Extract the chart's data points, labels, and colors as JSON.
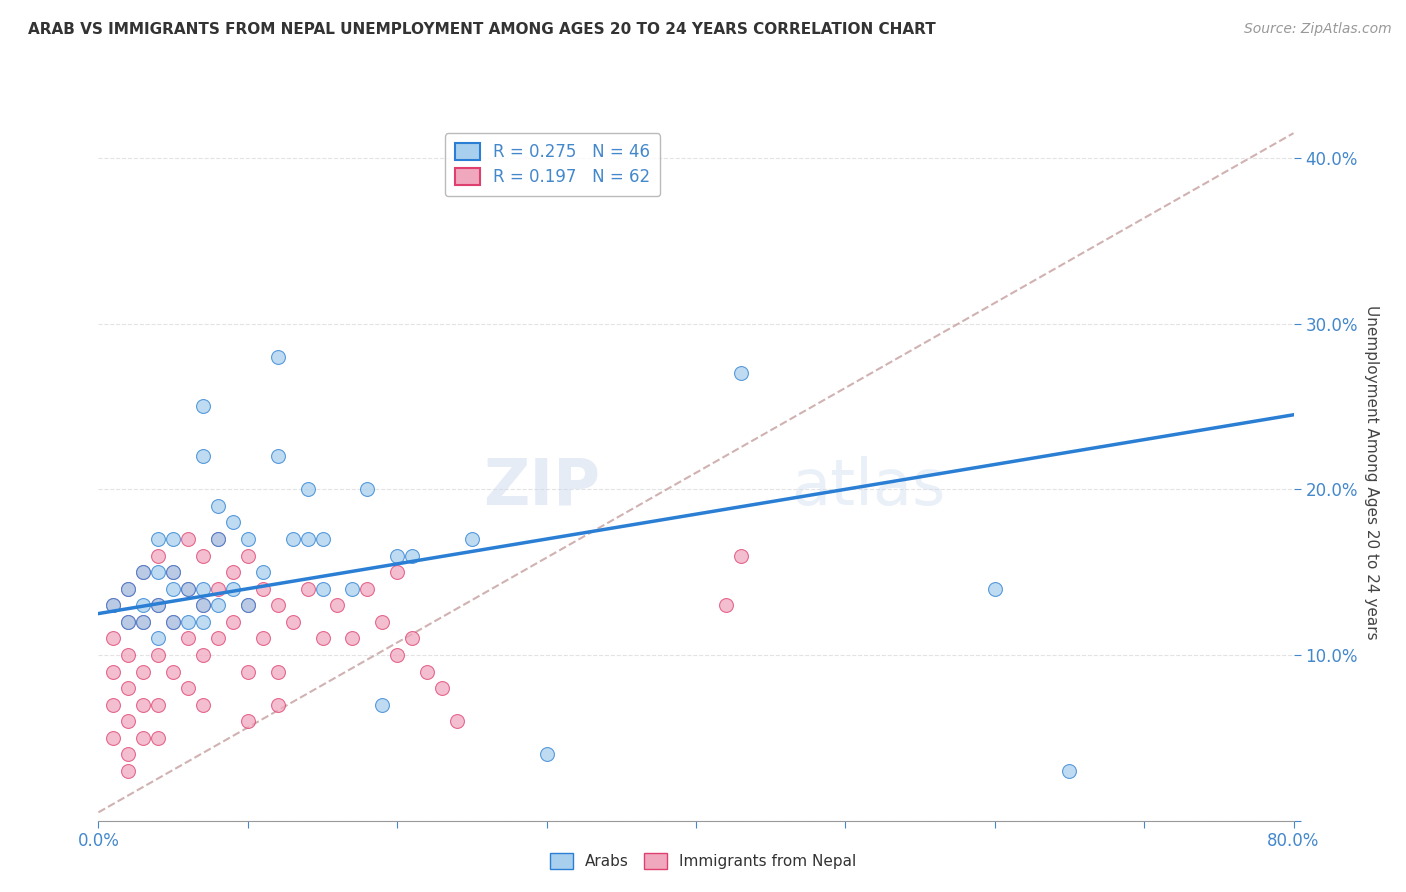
{
  "title": "ARAB VS IMMIGRANTS FROM NEPAL UNEMPLOYMENT AMONG AGES 20 TO 24 YEARS CORRELATION CHART",
  "source": "Source: ZipAtlas.com",
  "ylabel": "Unemployment Among Ages 20 to 24 years",
  "xlim": [
    0.0,
    0.8
  ],
  "ylim": [
    0.0,
    0.42
  ],
  "xticks": [
    0.0,
    0.1,
    0.2,
    0.3,
    0.4,
    0.5,
    0.6,
    0.7,
    0.8
  ],
  "yticks": [
    0.0,
    0.1,
    0.2,
    0.3,
    0.4
  ],
  "legend_blue_R": "R = 0.275",
  "legend_blue_N": "N = 46",
  "legend_pink_R": "R = 0.197",
  "legend_pink_N": "N = 62",
  "blue_color": "#a8cfed",
  "pink_color": "#f0a8bf",
  "blue_line_color": "#2a7fd4",
  "pink_line_color": "#e04070",
  "dashed_line_color": "#ccaaaa",
  "watermark_zip": "ZIP",
  "watermark_atlas": "atlas",
  "arab_x": [
    0.01,
    0.02,
    0.02,
    0.03,
    0.03,
    0.03,
    0.04,
    0.04,
    0.04,
    0.04,
    0.05,
    0.05,
    0.05,
    0.05,
    0.06,
    0.06,
    0.07,
    0.07,
    0.07,
    0.07,
    0.07,
    0.08,
    0.08,
    0.08,
    0.09,
    0.09,
    0.1,
    0.1,
    0.11,
    0.12,
    0.12,
    0.13,
    0.14,
    0.14,
    0.15,
    0.15,
    0.17,
    0.18,
    0.19,
    0.2,
    0.21,
    0.25,
    0.3,
    0.43,
    0.6,
    0.65
  ],
  "arab_y": [
    0.13,
    0.12,
    0.14,
    0.12,
    0.13,
    0.15,
    0.11,
    0.13,
    0.15,
    0.17,
    0.12,
    0.14,
    0.15,
    0.17,
    0.12,
    0.14,
    0.12,
    0.13,
    0.14,
    0.22,
    0.25,
    0.13,
    0.17,
    0.19,
    0.14,
    0.18,
    0.13,
    0.17,
    0.15,
    0.22,
    0.28,
    0.17,
    0.17,
    0.2,
    0.14,
    0.17,
    0.14,
    0.2,
    0.07,
    0.16,
    0.16,
    0.17,
    0.04,
    0.27,
    0.14,
    0.03
  ],
  "nepal_x": [
    0.01,
    0.01,
    0.01,
    0.01,
    0.01,
    0.02,
    0.02,
    0.02,
    0.02,
    0.02,
    0.02,
    0.02,
    0.03,
    0.03,
    0.03,
    0.03,
    0.03,
    0.04,
    0.04,
    0.04,
    0.04,
    0.04,
    0.05,
    0.05,
    0.05,
    0.06,
    0.06,
    0.06,
    0.06,
    0.07,
    0.07,
    0.07,
    0.07,
    0.08,
    0.08,
    0.08,
    0.09,
    0.09,
    0.1,
    0.1,
    0.1,
    0.11,
    0.11,
    0.12,
    0.12,
    0.13,
    0.14,
    0.15,
    0.16,
    0.17,
    0.18,
    0.19,
    0.2,
    0.2,
    0.21,
    0.22,
    0.23,
    0.24,
    0.1,
    0.12,
    0.42,
    0.43
  ],
  "nepal_y": [
    0.13,
    0.11,
    0.09,
    0.07,
    0.05,
    0.14,
    0.12,
    0.1,
    0.08,
    0.06,
    0.04,
    0.03,
    0.15,
    0.12,
    0.09,
    0.07,
    0.05,
    0.16,
    0.13,
    0.1,
    0.07,
    0.05,
    0.15,
    0.12,
    0.09,
    0.17,
    0.14,
    0.11,
    0.08,
    0.16,
    0.13,
    0.1,
    0.07,
    0.17,
    0.14,
    0.11,
    0.15,
    0.12,
    0.16,
    0.13,
    0.09,
    0.14,
    0.11,
    0.13,
    0.09,
    0.12,
    0.14,
    0.11,
    0.13,
    0.11,
    0.14,
    0.12,
    0.15,
    0.1,
    0.11,
    0.09,
    0.08,
    0.06,
    0.06,
    0.07,
    0.13,
    0.16
  ],
  "arab_trend_x": [
    0.0,
    0.8
  ],
  "arab_trend_y": [
    0.125,
    0.245
  ],
  "dashed_trend_x": [
    0.0,
    0.8
  ],
  "dashed_trend_y": [
    0.005,
    0.415
  ],
  "background_color": "#ffffff",
  "grid_color": "#e0e0e0"
}
